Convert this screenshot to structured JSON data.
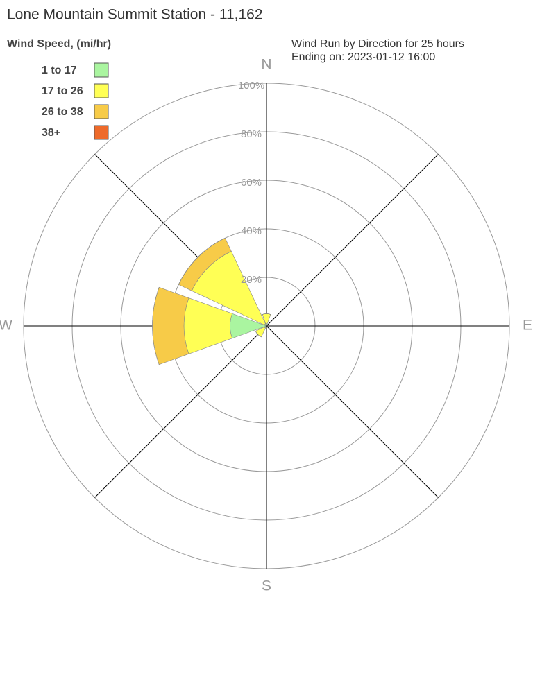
{
  "chart_data": {
    "type": "windrose",
    "title": "Lone Mountain Summit Station - 11,162",
    "legend_title": "Wind Speed, (mi/hr)",
    "subtitle": [
      "Wind Run by Direction for 25 hours",
      "Ending on: 2023-01-12 16:00"
    ],
    "categories": [
      "N",
      null,
      "E",
      null,
      "S",
      null,
      "W",
      null
    ],
    "series": [
      {
        "name": "1 to 17",
        "color": "#aaf5a0",
        "values": [
          1,
          0,
          0,
          0,
          0,
          1,
          15,
          1
        ]
      },
      {
        "name": "17 to 26",
        "color": "#ffff55",
        "values": [
          4,
          0,
          0,
          0,
          0,
          4,
          19,
          33
        ]
      },
      {
        "name": "26 to 38",
        "color": "#f7cb48",
        "values": [
          0,
          0,
          0,
          0,
          0,
          0,
          13,
          6
        ]
      },
      {
        "name": "38+",
        "color": "#ee6a2a",
        "values": [
          0,
          0,
          0,
          0,
          0,
          0,
          0,
          0
        ]
      }
    ],
    "rlim": [
      0,
      100
    ],
    "rticks": [
      {
        "value": 20,
        "label": "20%"
      },
      {
        "value": 40,
        "label": "40%"
      },
      {
        "value": 60,
        "label": "60%"
      },
      {
        "value": 80,
        "label": "80%"
      },
      {
        "value": 100,
        "label": "100%"
      }
    ]
  }
}
